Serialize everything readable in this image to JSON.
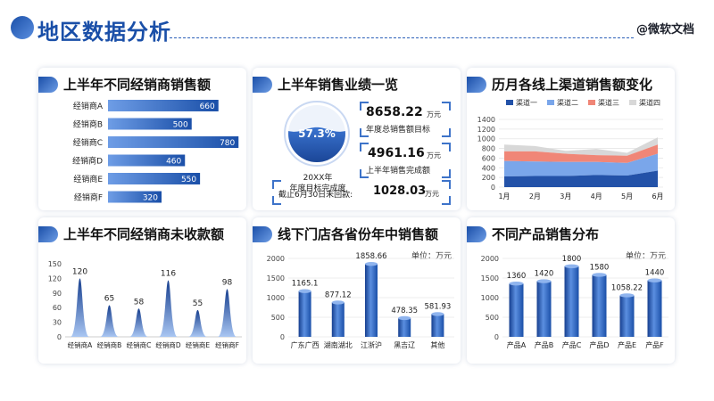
{
  "page": {
    "title": "地区数据分析",
    "brand": "@微软文档"
  },
  "cards": {
    "dealer_sales": "上半年不同经销商销售额",
    "performance": "上半年销售业绩一览",
    "online_channels": "历月各线上渠道销售额变化",
    "dealer_unpaid": "上半年不同经销商未收款额",
    "province_sales": "线下门店各省份年中销售额",
    "product_sales": "不同产品销售分布"
  },
  "kpi": {
    "progress_pct": "57.3%",
    "progress_value": 0.573,
    "year_label": "20XX年",
    "year_sub": "年度目标完成度",
    "annual_target": "8658.22",
    "annual_target_unit": "万元",
    "annual_target_label": "年度总销售额目标",
    "half_done": "4961.16",
    "half_done_unit": "万元",
    "half_done_label": "上半年销售完成额",
    "unpaid_prefix": "截止6月30日未回款:",
    "unpaid_value": "1028.03",
    "unpaid_unit": "万元"
  },
  "units": {
    "province": "单位：万元",
    "product": "单位：万元"
  },
  "colors": {
    "primary": "#1a4fa8",
    "bar_light": "#6e9de6",
    "ch1": "#2352a8",
    "ch2": "#7aa6ea",
    "ch3": "#f08677",
    "ch4": "#d8d8d8"
  },
  "chart_data": [
    {
      "id": "dealer_sales",
      "type": "bar",
      "orientation": "horizontal",
      "categories": [
        "经销商A",
        "经销商B",
        "经销商C",
        "经销商D",
        "经销商E",
        "经销商F"
      ],
      "values": [
        660,
        500,
        780,
        460,
        550,
        320
      ]
    },
    {
      "id": "online_channels",
      "type": "area",
      "stacked": true,
      "categories": [
        "1月",
        "2月",
        "3月",
        "4月",
        "5月",
        "6月"
      ],
      "ylim": [
        0,
        1400
      ],
      "yticks": [
        0,
        200,
        400,
        600,
        800,
        1000,
        1200,
        1400
      ],
      "legend_position": "top",
      "series": [
        {
          "name": "渠道一",
          "values": [
            220,
            230,
            230,
            250,
            240,
            340
          ],
          "color": "#2352a8"
        },
        {
          "name": "渠道二",
          "values": [
            320,
            300,
            290,
            270,
            260,
            350
          ],
          "color": "#7aa6ea"
        },
        {
          "name": "渠道三",
          "values": [
            200,
            210,
            170,
            140,
            150,
            190
          ],
          "color": "#f08677"
        },
        {
          "name": "渠道四",
          "values": [
            140,
            110,
            60,
            130,
            60,
            150
          ],
          "color": "#d8d8d8"
        }
      ]
    },
    {
      "id": "dealer_unpaid",
      "type": "area",
      "shape": "peaks",
      "categories": [
        "经销商A",
        "经销商B",
        "经销商C",
        "经销商D",
        "经销商E",
        "经销商F"
      ],
      "values": [
        120,
        65,
        58,
        116,
        55,
        98
      ],
      "ylim": [
        0,
        150
      ],
      "yticks": [
        0,
        30,
        60,
        90,
        120,
        150
      ]
    },
    {
      "id": "province_sales",
      "type": "bar",
      "categories": [
        "广东广西",
        "湖南湖北",
        "江浙沪",
        "黑吉辽",
        "其他"
      ],
      "values": [
        1165.1,
        877.12,
        1858.66,
        478.35,
        581.93
      ],
      "ylim": [
        0,
        2000
      ],
      "yticks": [
        0,
        500,
        1000,
        1500,
        2000
      ]
    },
    {
      "id": "product_sales",
      "type": "bar",
      "categories": [
        "产品A",
        "产品B",
        "产品C",
        "产品D",
        "产品E",
        "产品F"
      ],
      "values": [
        1360,
        1420,
        1800,
        1580,
        1058.22,
        1440
      ],
      "ylim": [
        0,
        2000
      ],
      "yticks": [
        0,
        500,
        1000,
        1500,
        2000
      ]
    }
  ]
}
